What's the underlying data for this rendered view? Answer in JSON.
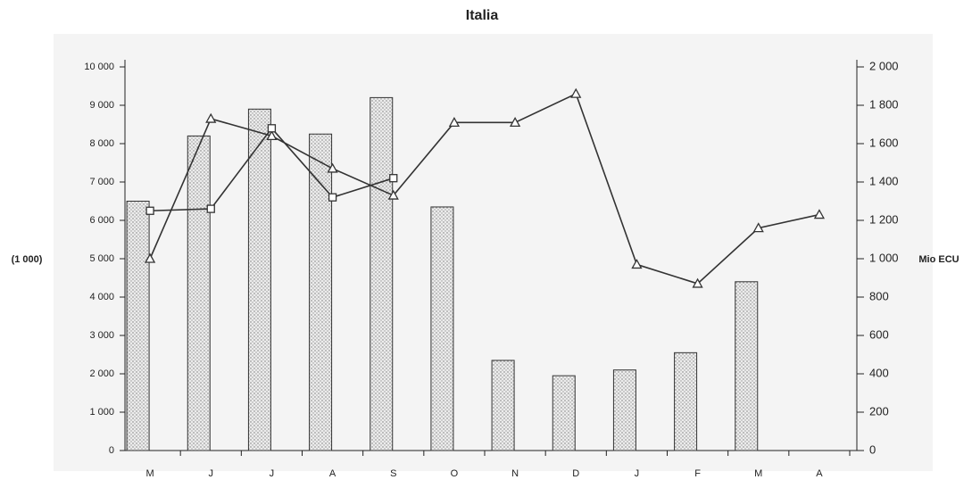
{
  "chart_data": {
    "type": "bar",
    "title": "Italia",
    "y_label": "(1 000)",
    "y2_label": "Mio ECU",
    "categories": [
      "M",
      "J",
      "J",
      "A",
      "S",
      "O",
      "N",
      "D",
      "J",
      "F",
      "M",
      "A"
    ],
    "ylim": [
      0,
      10000
    ],
    "yticks": [
      0,
      {
        "value": 1000,
        "label": "1 000"
      },
      {
        "value": 2000,
        "label": "2 000"
      },
      {
        "value": 3000,
        "label": "3 000"
      },
      {
        "value": 4000,
        "label": "4 000"
      },
      {
        "value": 5000,
        "label": "5 000"
      },
      {
        "value": 6000,
        "label": "6 000"
      },
      {
        "value": 7000,
        "label": "7 000"
      },
      {
        "value": 8000,
        "label": "8 000"
      },
      {
        "value": 9000,
        "label": "9 000"
      },
      {
        "value": 10000,
        "label": "10 000"
      }
    ],
    "y2lim": [
      0,
      2000
    ],
    "y2ticks": [
      0,
      200,
      400,
      600,
      800,
      {
        "value": 1000,
        "label": "1 000"
      },
      {
        "value": 1200,
        "label": "1 200"
      },
      {
        "value": 1400,
        "label": "1 400"
      },
      {
        "value": 1600,
        "label": "1 600"
      },
      {
        "value": 1800,
        "label": "1 800"
      },
      {
        "value": 2000,
        "label": "2 000"
      }
    ],
    "series": [
      {
        "type": "bar",
        "color": "#d9d9d9",
        "values": [
          6500,
          8200,
          8900,
          8250,
          9200,
          6350,
          2350,
          1950,
          2100,
          2550,
          4400,
          null
        ]
      },
      {
        "type": "line",
        "axis": "y2",
        "marker": "triangle",
        "color": "#333333",
        "values": [
          1000,
          1730,
          1640,
          1470,
          1330,
          1710,
          1710,
          1860,
          970,
          870,
          1160,
          1230
        ]
      },
      {
        "type": "line",
        "axis": "y2",
        "marker": "square",
        "color": "#333333",
        "values": [
          1250,
          1260,
          1680,
          1320,
          1420,
          null,
          null,
          null,
          null,
          null,
          null,
          null
        ]
      }
    ]
  }
}
